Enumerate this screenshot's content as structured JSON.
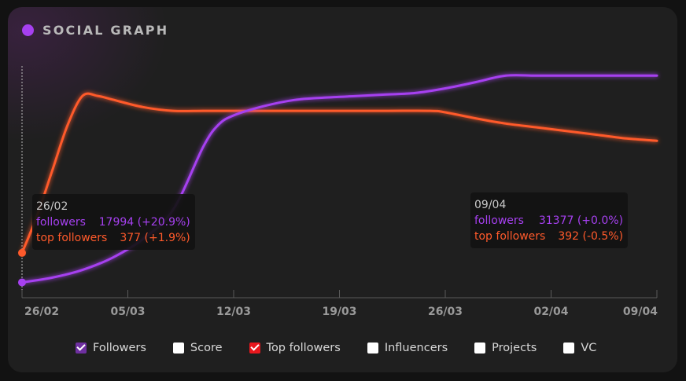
{
  "header": {
    "title": "SOCIAL GRAPH"
  },
  "chart_data": {
    "type": "line",
    "categories": [
      "26/02",
      "05/03",
      "12/03",
      "19/03",
      "26/03",
      "02/04",
      "09/04"
    ],
    "series": [
      {
        "name": "followers",
        "color": "#a640f0",
        "x": [
          0,
          2,
          4,
          6,
          8,
          10,
          12,
          13,
          14,
          16,
          18,
          20,
          22,
          24,
          26,
          28,
          30,
          32,
          34,
          36,
          38,
          40,
          42
        ],
        "values": [
          17994,
          18300,
          18800,
          19600,
          20800,
          22700,
          26800,
          28200,
          28800,
          29400,
          29800,
          29950,
          30050,
          30150,
          30250,
          30550,
          30950,
          31377,
          31377,
          31377,
          31377,
          31377,
          31377
        ]
      },
      {
        "name": "top followers",
        "color": "#ff5a2b",
        "x": [
          0,
          1,
          2,
          3,
          4,
          5,
          6,
          8,
          10,
          12,
          14,
          16,
          20,
          24,
          27,
          28,
          30,
          32,
          34,
          36,
          38,
          40,
          42
        ],
        "values": [
          377,
          382,
          388,
          394,
          398,
          398,
          397.5,
          396.5,
          396,
          396,
          396,
          396,
          396,
          396,
          396,
          395.8,
          395,
          394.3,
          393.8,
          393.3,
          392.8,
          392.3,
          392
        ]
      }
    ],
    "title": "SOCIAL GRAPH",
    "xlabel": "",
    "ylabel": "",
    "ylim_followers": [
      17000,
      32000
    ],
    "ylim_top_followers": [
      371,
      402
    ],
    "tooltips": [
      {
        "date": "26/02",
        "followers": "17994 (+20.9%)",
        "top_followers": "377 (+1.9%)"
      },
      {
        "date": "09/04",
        "followers": "31377 (+0.0%)",
        "top_followers": "392 (-0.5%)"
      }
    ]
  },
  "tooltip_labels": {
    "followers": "followers",
    "top_followers": "top followers"
  },
  "legend": [
    {
      "label": "Followers",
      "checked": true,
      "color": "#6e2fa0"
    },
    {
      "label": "Score",
      "checked": false,
      "color": "#ffffff"
    },
    {
      "label": "Top followers",
      "checked": true,
      "color": "#e8171d"
    },
    {
      "label": "Influencers",
      "checked": false,
      "color": "#ffffff"
    },
    {
      "label": "Projects",
      "checked": false,
      "color": "#ffffff"
    },
    {
      "label": "VC",
      "checked": false,
      "color": "#ffffff"
    }
  ]
}
